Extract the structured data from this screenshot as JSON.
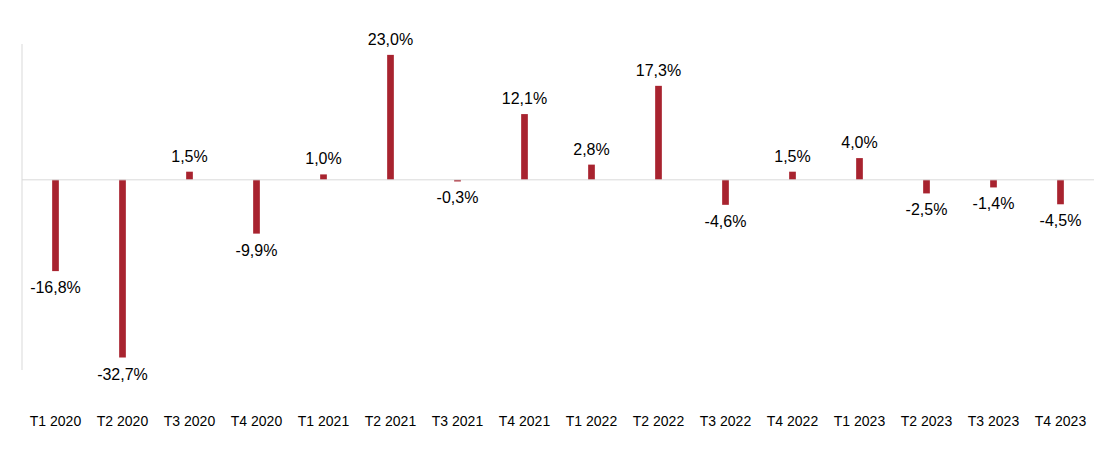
{
  "chart_data": {
    "type": "bar",
    "categories": [
      "T1 2020",
      "T2 2020",
      "T3 2020",
      "T4 2020",
      "T1 2021",
      "T2 2021",
      "T3 2021",
      "T4 2021",
      "T1 2022",
      "T2 2022",
      "T3 2022",
      "T4 2022",
      "T1 2023",
      "T2 2023",
      "T3 2023",
      "T4 2023"
    ],
    "values": [
      -16.8,
      -32.7,
      1.5,
      -9.9,
      1.0,
      23.0,
      -0.3,
      12.1,
      2.8,
      17.3,
      -4.6,
      1.5,
      4.0,
      -2.5,
      -1.4,
      -4.5
    ],
    "value_labels": [
      "-16,8%",
      "-32,7%",
      "1,5%",
      "-9,9%",
      "1,0%",
      "23,0%",
      "-0,3%",
      "12,1%",
      "2,8%",
      "17,3%",
      "-4,6%",
      "1,5%",
      "4,0%",
      "-2,5%",
      "-1,4%",
      "-4,5%"
    ],
    "color": "#a8232f",
    "ylim": [
      -35,
      25
    ],
    "grid": false,
    "data_labels": true,
    "tick_labels": "x"
  }
}
